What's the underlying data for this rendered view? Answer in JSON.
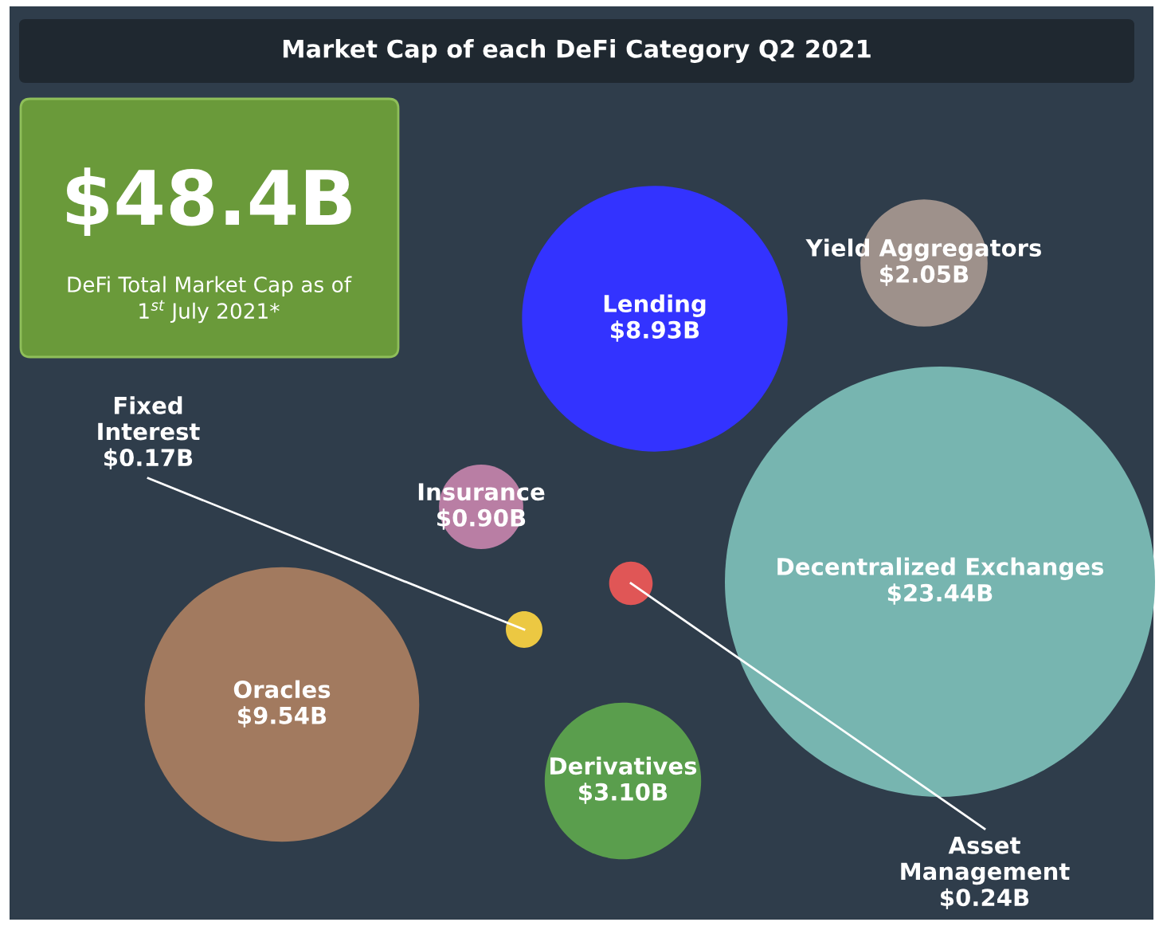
{
  "chart_data": {
    "type": "other",
    "title": "Market Cap of each DeFi Category Q2 2021",
    "categories": [
      "Lending",
      "Yield Aggregators",
      "Decentralized Exchanges",
      "Insurance",
      "Asset Management",
      "Fixed Interest",
      "Oracles",
      "Derivatives"
    ],
    "values": [
      8.93,
      2.05,
      23.44,
      0.9,
      0.24,
      0.17,
      9.54,
      3.1
    ],
    "value_labels": [
      "$8.93B",
      "$2.05B",
      "$23.44B",
      "$0.90B",
      "$0.24B",
      "$0.17B",
      "$9.54B",
      "$3.10B"
    ],
    "colors": [
      "#3333ff",
      "#9e918b",
      "#77b5b0",
      "#b97ea4",
      "#e05656",
      "#ecc842",
      "#a27a5f",
      "#5a9e4d"
    ],
    "annotations": [
      "$48.4B",
      "DeFi Total Market Cap as of 1$^{st}$ July 2021*"
    ]
  }
}
